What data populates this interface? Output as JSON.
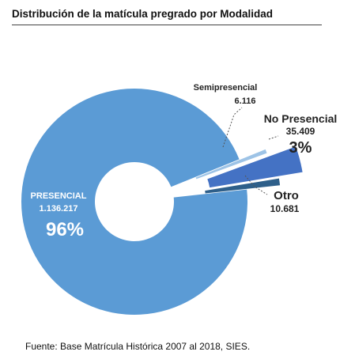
{
  "title": "Distribución de la matícula pregrado por Modalidad",
  "source": "Fuente: Base Matrícula Histórica 2007 al 2018, SIES.",
  "colors": {
    "presencial": "#5b9bd5",
    "no_presencial": "#4472c4",
    "otro": "#2e5f8a",
    "semipresencial": "#9dc3e6",
    "label_on_slice": "#ffffff",
    "label_outside": "#222222",
    "leader": "#555555"
  },
  "chart_data": {
    "type": "pie",
    "donut": true,
    "slices": [
      {
        "name": "PRESENCIAL",
        "value_label": "1.136.217",
        "value": 1136217,
        "percent_label": "96%",
        "exploded": false
      },
      {
        "name": "Semipresencial",
        "value_label": "6.116",
        "value": 6116,
        "percent_label": "",
        "exploded": true
      },
      {
        "name": "No Presencial",
        "value_label": "35.409",
        "value": 35409,
        "percent_label": "3%",
        "exploded": true
      },
      {
        "name": "Otro",
        "value_label": "10.681",
        "value": 10681,
        "percent_label": "",
        "exploded": true
      }
    ]
  }
}
